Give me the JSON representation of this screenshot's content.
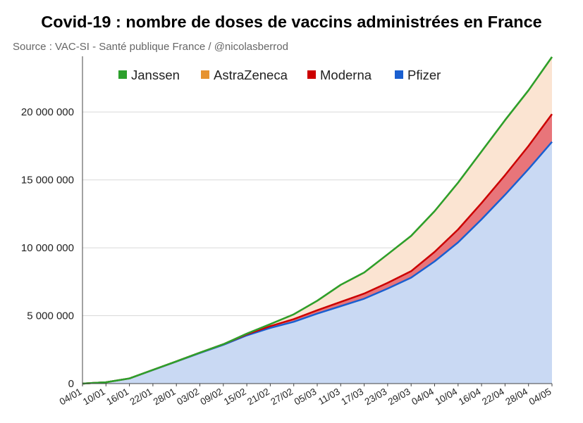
{
  "chart_data": {
    "type": "area",
    "stacked": true,
    "title": "Covid-19 : nombre de doses de vaccins administrées en France",
    "subtitle": "Source : VAC-SI - Santé publique France / @nicolasberrod",
    "xlabel": "",
    "ylabel": "",
    "ylim": [
      0,
      24000000
    ],
    "yticks": [
      0,
      5000000,
      10000000,
      15000000,
      20000000
    ],
    "ytick_labels": [
      "0",
      "5 000 000",
      "10 000 000",
      "15 000 000",
      "20 000 000"
    ],
    "x_tick_labels": [
      "04/01",
      "10/01",
      "16/01",
      "22/01",
      "28/01",
      "03/02",
      "09/02",
      "15/02",
      "21/02",
      "27/02",
      "05/03",
      "11/03",
      "17/03",
      "23/03",
      "29/03",
      "04/04",
      "10/04",
      "16/04",
      "22/04",
      "28/04",
      "04/05"
    ],
    "x_day_index": [
      0,
      6,
      12,
      18,
      24,
      30,
      36,
      42,
      48,
      54,
      60,
      66,
      72,
      78,
      84,
      90,
      96,
      102,
      108,
      114,
      120
    ],
    "legend_position": "top",
    "legend": [
      {
        "name": "Janssen",
        "color": "#2ca02c"
      },
      {
        "name": "AstraZeneca",
        "color": "#e6922e"
      },
      {
        "name": "Moderna",
        "color": "#cc0000"
      },
      {
        "name": "Pfizer",
        "color": "#1a5fd0"
      }
    ],
    "series": [
      {
        "name": "Pfizer",
        "color": "#1a5fd0",
        "fill": "#c9d9f3",
        "values": [
          0,
          100000,
          380000,
          1000000,
          1620000,
          2250000,
          2850000,
          3550000,
          4100000,
          4550000,
          5150000,
          5700000,
          6250000,
          7000000,
          7800000,
          9000000,
          10400000,
          12100000,
          13900000,
          15800000,
          17800000
        ]
      },
      {
        "name": "Moderna",
        "color": "#cc0000",
        "fill": "#e8757a",
        "values": [
          0,
          0,
          0,
          10000,
          20000,
          30000,
          50000,
          80000,
          130000,
          200000,
          250000,
          320000,
          380000,
          420000,
          480000,
          700000,
          950000,
          1200000,
          1450000,
          1700000,
          2050000
        ]
      },
      {
        "name": "AstraZeneca",
        "color": "#e6922e",
        "fill": "#fbe4d2",
        "values": [
          0,
          0,
          0,
          0,
          0,
          0,
          0,
          50000,
          150000,
          350000,
          700000,
          1250000,
          1550000,
          2100000,
          2600000,
          3000000,
          3450000,
          3800000,
          4050000,
          4100000,
          4200000
        ]
      },
      {
        "name": "Janssen",
        "color": "#2ca02c",
        "fill": "#a8d8a0",
        "values": [
          0,
          0,
          0,
          0,
          0,
          0,
          0,
          0,
          0,
          0,
          0,
          0,
          0,
          0,
          0,
          0,
          0,
          0,
          0,
          0,
          5000
        ]
      }
    ]
  }
}
